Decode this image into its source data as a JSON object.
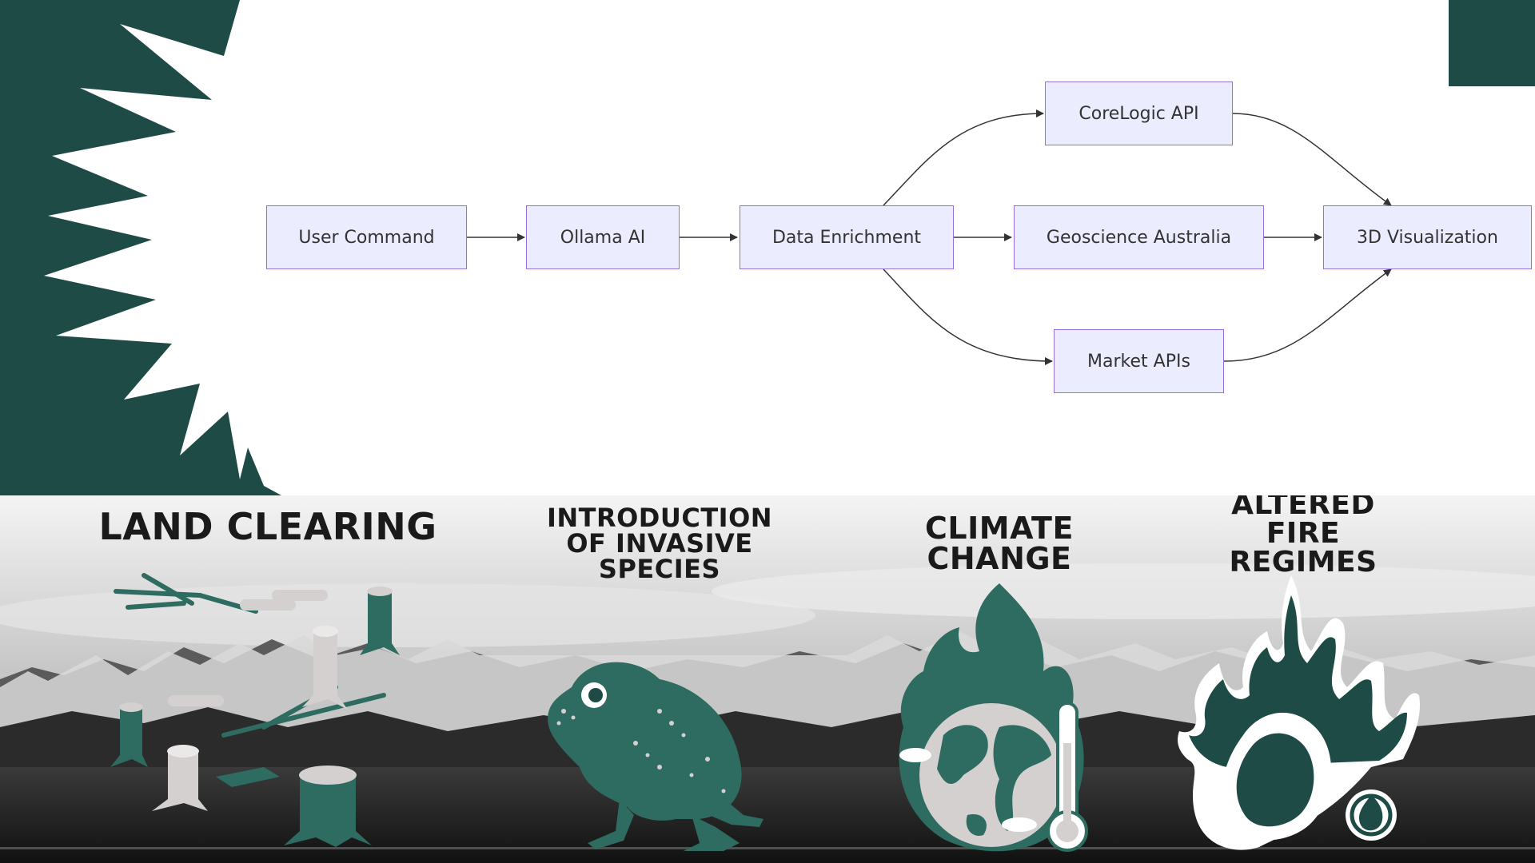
{
  "diagram": {
    "nodes": {
      "user_command": "User Command",
      "ollama_ai": "Ollama AI",
      "data_enrichment": "Data Enrichment",
      "corelogic_api": "CoreLogic API",
      "geoscience_australia": "Geoscience Australia",
      "market_apis": "Market APIs",
      "visualization_3d": "3D Visualization"
    }
  },
  "threats": {
    "land_clearing": "LAND CLEARING",
    "invasive_species": [
      "INTRODUCTION",
      "OF INVASIVE",
      "SPECIES"
    ],
    "climate_change": [
      "CLIMATE",
      "CHANGE"
    ],
    "altered_fire": [
      "ALTERED",
      "FIRE",
      "REGIMES"
    ]
  },
  "colors": {
    "panel_green": "#1e4b45",
    "illustration_green": "#2e6b60",
    "illustration_grey": "#d4d0d0",
    "node_fill": "#ececff",
    "node_border": "#9370db",
    "arrow": "#333333"
  }
}
